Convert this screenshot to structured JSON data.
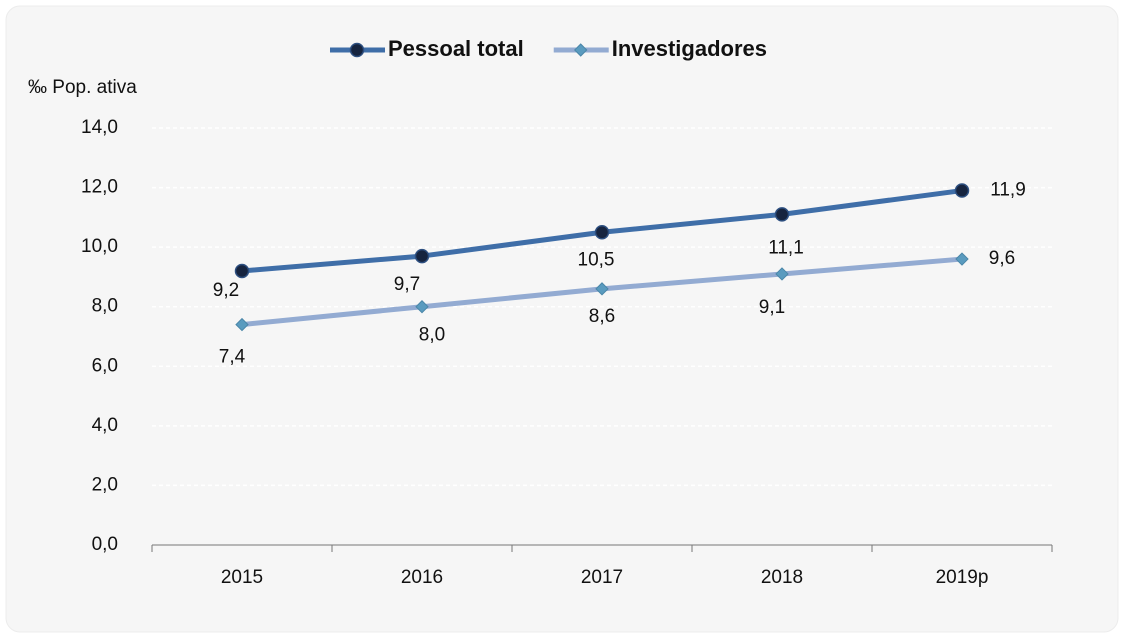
{
  "chart_data": {
    "type": "line",
    "y_axis_label": "‰ Pop. ativa",
    "categories": [
      "2015",
      "2016",
      "2017",
      "2018",
      "2019p"
    ],
    "series": [
      {
        "name": "Pessoal total",
        "color": "#3f6ea8",
        "marker_color": "#16243f",
        "marker": "circle",
        "values": [
          9.2,
          9.7,
          10.5,
          11.1,
          11.9
        ],
        "value_labels": [
          "9,2",
          "9,7",
          "10,5",
          "11,1",
          "11,9"
        ]
      },
      {
        "name": "Investigadores",
        "color": "#93abd2",
        "marker_color": "#5a9bbf",
        "marker": "diamond",
        "values": [
          7.4,
          8.0,
          8.6,
          9.1,
          9.6
        ],
        "value_labels": [
          "7,4",
          "8,0",
          "8,6",
          "9,1",
          "9,6"
        ]
      }
    ],
    "ylim": [
      0,
      14
    ],
    "yticks": [
      {
        "value": 0,
        "label": "0,0"
      },
      {
        "value": 2,
        "label": "2,0"
      },
      {
        "value": 4,
        "label": "4,0"
      },
      {
        "value": 6,
        "label": "6,0"
      },
      {
        "value": 8,
        "label": "8,0"
      },
      {
        "value": 10,
        "label": "10,0"
      },
      {
        "value": 12,
        "label": "12,0"
      },
      {
        "value": 14,
        "label": "14,0"
      }
    ],
    "grid": true,
    "legend": "top"
  }
}
